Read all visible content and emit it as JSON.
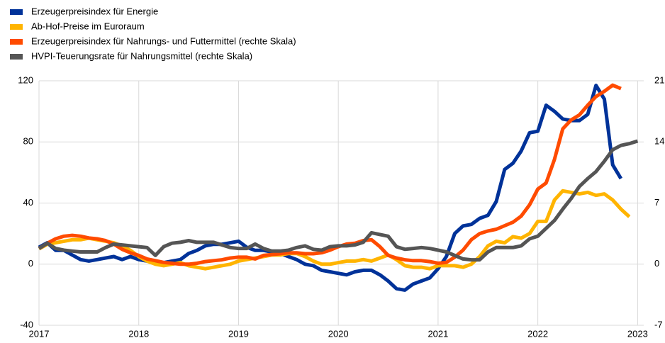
{
  "chart_data": {
    "type": "line",
    "x": [
      2017,
      2017.083,
      2017.167,
      2017.25,
      2017.333,
      2017.417,
      2017.5,
      2017.583,
      2017.667,
      2017.75,
      2017.833,
      2017.917,
      2018,
      2018.083,
      2018.167,
      2018.25,
      2018.333,
      2018.417,
      2018.5,
      2018.583,
      2018.667,
      2018.75,
      2018.833,
      2018.917,
      2019,
      2019.083,
      2019.167,
      2019.25,
      2019.333,
      2019.417,
      2019.5,
      2019.583,
      2019.667,
      2019.75,
      2019.833,
      2019.917,
      2020,
      2020.083,
      2020.167,
      2020.25,
      2020.333,
      2020.417,
      2020.5,
      2020.583,
      2020.667,
      2020.75,
      2020.833,
      2020.917,
      2021,
      2021.083,
      2021.167,
      2021.25,
      2021.333,
      2021.417,
      2021.5,
      2021.583,
      2021.667,
      2021.75,
      2021.833,
      2021.917,
      2022,
      2022.083,
      2022.167,
      2022.25,
      2022.333,
      2022.417,
      2022.5,
      2022.583,
      2022.667,
      2022.75,
      2022.833,
      2022.917,
      2023
    ],
    "series": [
      {
        "name": "Erzeugerpreisindex für Energie",
        "color": "#003299",
        "axis": "y",
        "values": [
          11,
          14,
          9,
          9,
          6,
          3,
          2,
          3,
          4,
          5,
          3,
          5,
          3,
          2,
          1,
          1,
          2,
          3,
          7,
          9,
          12,
          13,
          13,
          14,
          15,
          11,
          9,
          9,
          8,
          7,
          5,
          3,
          0,
          -1,
          -4,
          -5,
          -6,
          -7,
          -5,
          -4,
          -4,
          -7,
          -11,
          -16,
          -17,
          -13,
          -11,
          -9,
          -3,
          5,
          20,
          25,
          26,
          30,
          32,
          41,
          62,
          66,
          74,
          86,
          87,
          104,
          100,
          95,
          94,
          94,
          98,
          117,
          108,
          65,
          56,
          null,
          null
        ]
      },
      {
        "name": "Ab-Hof-Preise im Euroraum",
        "color": "#ffb400",
        "axis": "y",
        "values": [
          10,
          13,
          14,
          15,
          16,
          16,
          17,
          16,
          15,
          14,
          12,
          9,
          5,
          2,
          0,
          -1,
          0,
          1,
          -1,
          -2,
          -3,
          -2,
          -1,
          0,
          2,
          3,
          4,
          5,
          6,
          6,
          7,
          7,
          5,
          2,
          0,
          0,
          1,
          2,
          2,
          3,
          2,
          4,
          6,
          3,
          -1,
          -2,
          -2,
          -3,
          -1,
          -1,
          -1,
          -2,
          0,
          5,
          12,
          15,
          14,
          18,
          17,
          20,
          28,
          28,
          42,
          48,
          47,
          46,
          47,
          45,
          46,
          42,
          36,
          31,
          null
        ]
      },
      {
        "name": "Erzeugerpreisindex für Nahrungs- und Futtermittel (rechte Skala)",
        "color": "#ff4b00",
        "axis": "y2",
        "values": [
          1.8,
          2.4,
          2.9,
          3.2,
          3.3,
          3.2,
          3.0,
          2.9,
          2.7,
          2.3,
          1.7,
          1.3,
          1.0,
          0.6,
          0.4,
          0.2,
          0.1,
          0.0,
          0.0,
          0.1,
          0.3,
          0.4,
          0.5,
          0.7,
          0.8,
          0.8,
          0.6,
          1.0,
          1.1,
          1.2,
          1.3,
          1.3,
          1.2,
          1.2,
          1.3,
          1.6,
          2.0,
          2.3,
          2.4,
          2.7,
          2.8,
          2.0,
          1.0,
          0.7,
          0.5,
          0.4,
          0.4,
          0.3,
          0.1,
          0.2,
          0.8,
          1.6,
          2.8,
          3.5,
          3.8,
          4.0,
          4.4,
          4.8,
          5.5,
          6.8,
          8.6,
          9.3,
          12,
          15.5,
          16.5,
          17.1,
          18.2,
          19.2,
          19.8,
          20.5,
          20.1,
          null,
          null
        ]
      },
      {
        "name": "HVPI-Teuerungsrate für Nahrungsmittel (rechte Skala)",
        "color": "#555555",
        "axis": "y2",
        "values": [
          1.8,
          2.4,
          1.8,
          1.6,
          1.5,
          1.4,
          1.4,
          1.4,
          1.9,
          2.3,
          2.2,
          2.1,
          2.0,
          1.9,
          1.0,
          2.0,
          2.4,
          2.5,
          2.7,
          2.5,
          2.5,
          2.5,
          2.2,
          1.9,
          1.8,
          1.8,
          2.3,
          1.8,
          1.5,
          1.5,
          1.6,
          1.9,
          2.1,
          1.7,
          1.6,
          2.0,
          2.1,
          2.1,
          2.2,
          2.5,
          3.6,
          3.4,
          3.2,
          2.0,
          1.7,
          1.8,
          1.9,
          1.8,
          1.6,
          1.4,
          1.0,
          0.6,
          0.5,
          0.5,
          1.4,
          1.9,
          1.9,
          1.9,
          2.1,
          2.9,
          3.2,
          4.1,
          5.0,
          6.3,
          7.5,
          8.9,
          9.8,
          10.6,
          11.8,
          13.1,
          13.6,
          13.8,
          14.1
        ]
      }
    ],
    "xlim": [
      2017,
      2023.04
    ],
    "xticks": [
      2017,
      2018,
      2019,
      2020,
      2021,
      2022,
      2023
    ],
    "ylim": [
      -40,
      120
    ],
    "yticks": [
      -40,
      0,
      40,
      80,
      120
    ],
    "y2lim": [
      -7,
      21
    ],
    "y2ticks": [
      -7,
      0,
      7,
      14,
      21
    ],
    "grid": true,
    "legend": "top-left"
  }
}
